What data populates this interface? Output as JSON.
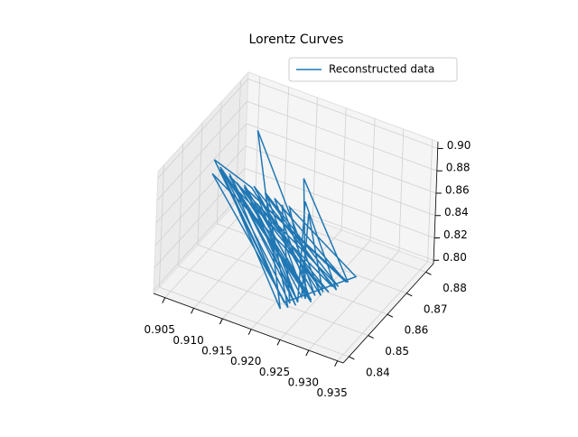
{
  "chart_data": {
    "type": "line3d",
    "title": "Lorentz Curves",
    "series": [
      {
        "name": "Reconstructed data",
        "color": "#1f77b4",
        "x": [
          0.908,
          0.924,
          0.91,
          0.926,
          0.907,
          0.922,
          0.911,
          0.927,
          0.91,
          0.905,
          0.921,
          0.909,
          0.925,
          0.912,
          0.928,
          0.906,
          0.923,
          0.913,
          0.929,
          0.908,
          0.924,
          0.91,
          0.93,
          0.914,
          0.926,
          0.907,
          0.922,
          0.931,
          0.916,
          0.925,
          0.909,
          0.927,
          0.912,
          0.924,
          0.918,
          0.929,
          0.911,
          0.926,
          0.915,
          0.923,
          0.908,
          0.928,
          0.913,
          0.925,
          0.917,
          0.93,
          0.91,
          0.924,
          0.919,
          0.927
        ],
        "y": [
          0.86,
          0.848,
          0.862,
          0.85,
          0.858,
          0.846,
          0.865,
          0.852,
          0.866,
          0.861,
          0.849,
          0.859,
          0.851,
          0.863,
          0.853,
          0.857,
          0.847,
          0.864,
          0.855,
          0.86,
          0.849,
          0.862,
          0.856,
          0.866,
          0.85,
          0.858,
          0.848,
          0.858,
          0.868,
          0.851,
          0.861,
          0.853,
          0.863,
          0.849,
          0.87,
          0.854,
          0.864,
          0.852,
          0.867,
          0.848,
          0.859,
          0.855,
          0.865,
          0.85,
          0.872,
          0.857,
          0.862,
          0.851,
          0.869,
          0.853
        ],
        "z": [
          0.87,
          0.805,
          0.86,
          0.81,
          0.878,
          0.802,
          0.905,
          0.812,
          0.85,
          0.875,
          0.806,
          0.865,
          0.809,
          0.845,
          0.815,
          0.872,
          0.803,
          0.855,
          0.818,
          0.868,
          0.807,
          0.858,
          0.822,
          0.848,
          0.808,
          0.876,
          0.804,
          0.825,
          0.84,
          0.811,
          0.862,
          0.814,
          0.852,
          0.806,
          0.845,
          0.817,
          0.857,
          0.81,
          0.842,
          0.805,
          0.866,
          0.816,
          0.85,
          0.809,
          0.86,
          0.82,
          0.858,
          0.807,
          0.838,
          0.813
        ]
      }
    ],
    "xlim": [
      0.903,
      0.936
    ],
    "ylim": [
      0.837,
      0.884
    ],
    "zlim": [
      0.797,
      0.906
    ],
    "xticks": [
      0.905,
      {
        "value": 0.91,
        "label": "0.910"
      },
      0.915,
      {
        "value": 0.92,
        "label": "0.920"
      },
      0.925,
      {
        "value": 0.93,
        "label": "0.930"
      },
      0.935
    ],
    "yticks": [
      0.84,
      0.85,
      0.86,
      0.87,
      0.88
    ],
    "zticks": [
      {
        "value": 0.8,
        "label": "0.80"
      },
      0.82,
      0.84,
      0.86,
      0.88,
      {
        "value": 0.9,
        "label": "0.90"
      }
    ],
    "grid": true,
    "legend": "upper right"
  }
}
